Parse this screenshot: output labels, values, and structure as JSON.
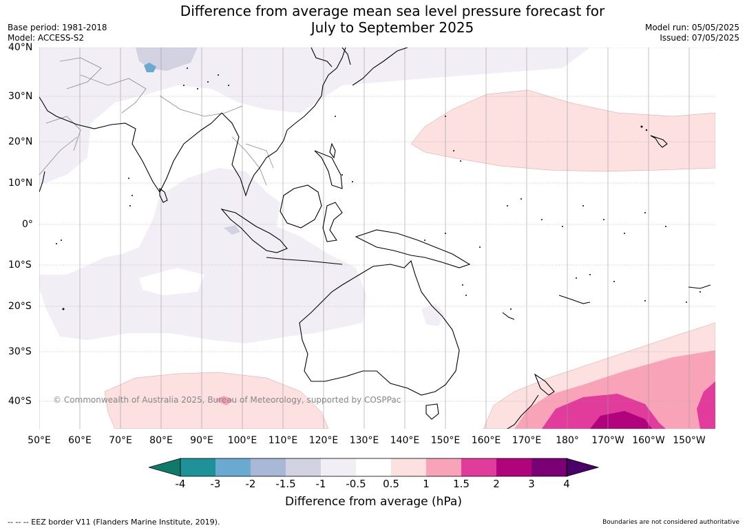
{
  "title_line1": "Difference from average mean sea level pressure forecast for",
  "title_line2": "July to September 2025",
  "base_period": "Base period: 1981-2018",
  "model": "Model: ACCESS-S2",
  "model_run": "Model run: 05/05/2025",
  "issued": "Issued: 07/05/2025",
  "lat_labels": [
    "40°N",
    "30°N",
    "20°N",
    "10°N",
    "0°",
    "10°S",
    "20°S",
    "30°S",
    "40°S"
  ],
  "lon_labels": [
    "50°E",
    "60°E",
    "70°E",
    "80°E",
    "90°E",
    "100°E",
    "110°E",
    "120°E",
    "130°E",
    "140°E",
    "150°E",
    "160°E",
    "170°E",
    "180°",
    "170°W",
    "160°W",
    "150°W"
  ],
  "copyright": "© Commonwealth of Australia 2025, Bureau of Meteorology, supported by COSPPac",
  "colorbar": {
    "ticks": [
      "-4",
      "-3",
      "-2",
      "-1.5",
      "-1",
      "-0.5",
      "0.5",
      "1",
      "1.5",
      "2",
      "3",
      "4"
    ],
    "colors": [
      "#0f7a6a",
      "#1f9199",
      "#6aaad1",
      "#a8b8d6",
      "#d2d2e3",
      "#f2eef5",
      "#ffffff",
      "#fde0e0",
      "#f9a3b9",
      "#e13b9b",
      "#b1047c",
      "#7b0076",
      "#4b0069"
    ],
    "title": "Difference from average (hPa)"
  },
  "footer_left": "--  --  -- EEZ border V11 (Flanders Marine Institute, 2019).",
  "footer_right": "Boundaries are not considered authoritative"
}
